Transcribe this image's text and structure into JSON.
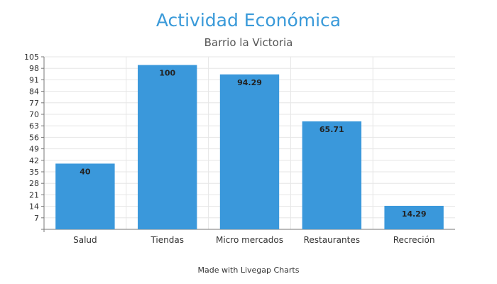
{
  "chart_data": {
    "type": "bar",
    "title": "Actividad Económica",
    "subtitle": "Barrio la Victoria",
    "categories": [
      "Salud",
      "Tiendas",
      "Micro mercados",
      "Restaurantes",
      "Recreción"
    ],
    "values": [
      40,
      100,
      94.29,
      65.71,
      14.29
    ],
    "data_labels": [
      "40",
      "100",
      "94.29",
      "65.71",
      "14.29"
    ],
    "y_ticks": [
      7,
      14,
      21,
      28,
      35,
      42,
      49,
      56,
      63,
      70,
      77,
      84,
      91,
      98,
      105
    ],
    "y_tick_labels": [
      "7",
      "14",
      "21",
      "28",
      "35",
      "42",
      "49",
      "56",
      "63",
      "70",
      "77",
      "84",
      "91",
      "98",
      "105"
    ],
    "ylim": [
      0,
      105
    ],
    "grid": true,
    "bar_color": "#3a98db",
    "footer": "Made with Livegap Charts"
  }
}
